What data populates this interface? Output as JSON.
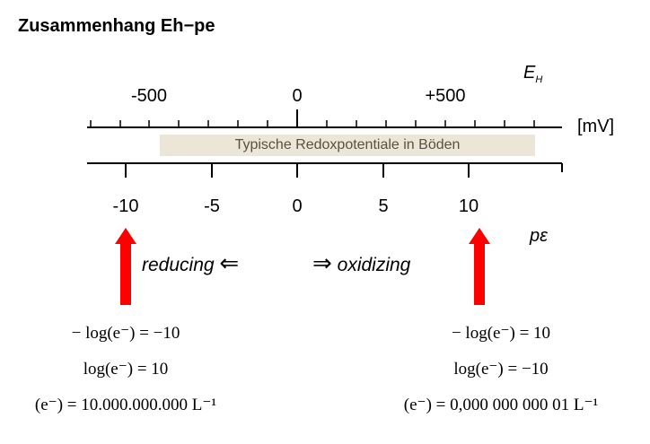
{
  "title": "Zusammenhang Eh−pe",
  "eh_axis": {
    "symbol": "E",
    "subscript": "H",
    "unit": "[mV]",
    "ticks": [
      "-500",
      "0",
      "+500"
    ]
  },
  "band_label": "Typische Redoxpotentiale in Böden",
  "pe_axis": {
    "symbol": "pε",
    "ticks": [
      "-10",
      "-5",
      "0",
      "5",
      "10"
    ]
  },
  "reducing": {
    "label": "reducing",
    "arrow": "⇐"
  },
  "oxidizing": {
    "label": "oxidizing",
    "arrow": "⇒"
  },
  "equations_left": [
    "− log(e⁻) = −10",
    "log(e⁻) = 10",
    "(e⁻) = 10.000.000.000 L⁻¹"
  ],
  "equations_right": [
    "− log(e⁻) = 10",
    "log(e⁻) = −10",
    "(e⁻) = 0,000 000 000 01 L⁻¹"
  ],
  "colors": {
    "arrow": "#ff0000",
    "band": "#ebe6d8",
    "band_text": "#5a5040"
  }
}
